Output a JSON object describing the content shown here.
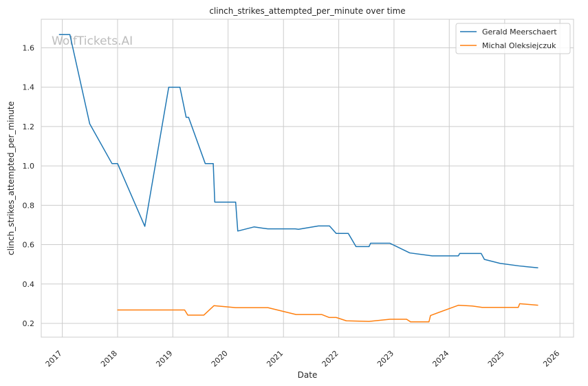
{
  "chart_data": {
    "type": "line",
    "title": "clinch_strikes_attempted_per_minute over time",
    "xlabel": "Date",
    "ylabel": "clinch_strikes_attempted_per_minute",
    "watermark": "WolfTickets.AI",
    "x_ticks": [
      "2017",
      "2018",
      "2019",
      "2020",
      "2021",
      "2022",
      "2023",
      "2024",
      "2025",
      "2026"
    ],
    "y_ticks": [
      "0.2",
      "0.4",
      "0.6",
      "0.8",
      "1.0",
      "1.2",
      "1.4",
      "1.6"
    ],
    "xlim": [
      "2016-08-15",
      "2026-04-01"
    ],
    "ylim": [
      0.13,
      1.745
    ],
    "grid": true,
    "legend_position": "top-right",
    "series": [
      {
        "name": "Gerald Meerschaert",
        "color": "#1f77b4",
        "points": [
          [
            "2016-12-10",
            1.667
          ],
          [
            "2017-02-20",
            1.667
          ],
          [
            "2017-07-01",
            1.214
          ],
          [
            "2017-11-25",
            1.012
          ],
          [
            "2018-01-01",
            1.012
          ],
          [
            "2018-06-30",
            0.693
          ],
          [
            "2018-12-05",
            1.4
          ],
          [
            "2019-02-17",
            1.4
          ],
          [
            "2019-03-30",
            1.247
          ],
          [
            "2019-04-15",
            1.247
          ],
          [
            "2019-08-03",
            1.012
          ],
          [
            "2019-09-25",
            1.012
          ],
          [
            "2019-10-05",
            0.816
          ],
          [
            "2020-02-20",
            0.816
          ],
          [
            "2020-03-05",
            0.669
          ],
          [
            "2020-06-20",
            0.69
          ],
          [
            "2020-09-20",
            0.68
          ],
          [
            "2021-03-20",
            0.68
          ],
          [
            "2021-04-10",
            0.678
          ],
          [
            "2021-08-20",
            0.695
          ],
          [
            "2021-11-01",
            0.695
          ],
          [
            "2021-12-15",
            0.657
          ],
          [
            "2022-03-05",
            0.657
          ],
          [
            "2022-04-25",
            0.59
          ],
          [
            "2022-07-20",
            0.59
          ],
          [
            "2022-07-30",
            0.607
          ],
          [
            "2022-12-05",
            0.607
          ],
          [
            "2023-04-15",
            0.558
          ],
          [
            "2023-09-10",
            0.543
          ],
          [
            "2024-03-01",
            0.543
          ],
          [
            "2024-03-10",
            0.555
          ],
          [
            "2024-07-30",
            0.555
          ],
          [
            "2024-08-20",
            0.525
          ],
          [
            "2024-12-01",
            0.505
          ],
          [
            "2025-04-05",
            0.492
          ],
          [
            "2025-08-10",
            0.482
          ]
        ]
      },
      {
        "name": "Michal Oleksiejczuk",
        "color": "#ff7f0e",
        "points": [
          [
            "2017-12-30",
            0.268
          ],
          [
            "2019-03-20",
            0.268
          ],
          [
            "2019-04-10",
            0.242
          ],
          [
            "2019-07-25",
            0.242
          ],
          [
            "2019-09-30",
            0.29
          ],
          [
            "2020-02-20",
            0.28
          ],
          [
            "2020-09-20",
            0.28
          ],
          [
            "2021-03-25",
            0.245
          ],
          [
            "2021-09-10",
            0.245
          ],
          [
            "2021-10-30",
            0.23
          ],
          [
            "2021-12-15",
            0.23
          ],
          [
            "2022-02-20",
            0.213
          ],
          [
            "2022-07-20",
            0.21
          ],
          [
            "2022-12-05",
            0.221
          ],
          [
            "2023-03-25",
            0.221
          ],
          [
            "2023-04-20",
            0.208
          ],
          [
            "2023-08-20",
            0.208
          ],
          [
            "2023-08-30",
            0.24
          ],
          [
            "2024-03-01",
            0.292
          ],
          [
            "2024-06-01",
            0.288
          ],
          [
            "2024-08-05",
            0.281
          ],
          [
            "2025-04-01",
            0.281
          ],
          [
            "2025-04-10",
            0.3
          ],
          [
            "2025-08-10",
            0.292
          ]
        ]
      }
    ]
  }
}
